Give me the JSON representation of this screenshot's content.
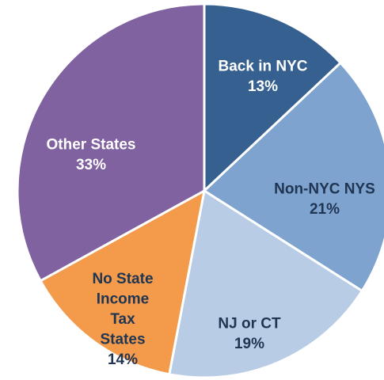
{
  "chart_data": {
    "type": "pie",
    "categories": [
      "Back in NYC",
      "Non-NYC NYS",
      "NJ or CT",
      "No State Income Tax States",
      "Other States"
    ],
    "values": [
      13,
      21,
      19,
      14,
      33
    ],
    "value_labels": [
      "13%",
      "21%",
      "19%",
      "14%",
      "33%"
    ],
    "colors": [
      "#36608f",
      "#7ea3cf",
      "#b8cce5",
      "#f39a4b",
      "#8062a0"
    ]
  }
}
